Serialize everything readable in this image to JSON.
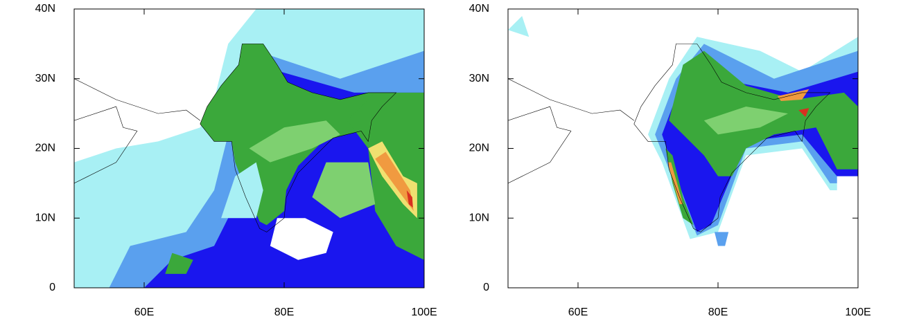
{
  "panels": [
    {
      "xlim": [
        50,
        100
      ],
      "ylim": [
        0,
        40
      ],
      "xticks": [
        {
          "value": 60,
          "label": "60E"
        },
        {
          "value": 80,
          "label": "80E"
        },
        {
          "value": 100,
          "label": "100E"
        }
      ],
      "yticks": [
        0,
        {
          "value": 10,
          "label": "10N"
        },
        {
          "value": 20,
          "label": "20N"
        },
        {
          "value": 30,
          "label": "30N"
        },
        {
          "value": 40,
          "label": "40N"
        }
      ]
    },
    {
      "xlim": [
        50,
        100
      ],
      "ylim": [
        0,
        40
      ],
      "xticks": [
        {
          "value": 60,
          "label": "60E"
        },
        {
          "value": 80,
          "label": "80E"
        },
        {
          "value": 100,
          "label": "100E"
        }
      ],
      "yticks": [
        0,
        {
          "value": 10,
          "label": "10N"
        },
        {
          "value": 20,
          "label": "20N"
        },
        {
          "value": 30,
          "label": "30N"
        },
        {
          "value": 40,
          "label": "40N"
        }
      ]
    }
  ]
}
